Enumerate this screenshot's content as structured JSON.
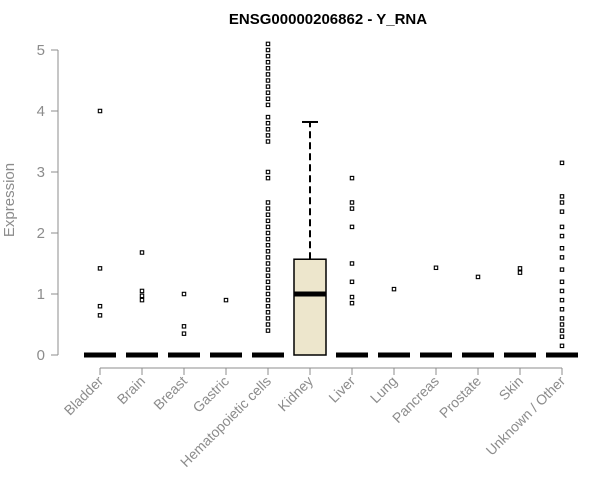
{
  "chart_data": {
    "type": "box",
    "title": "ENSG00000206862 - Y_RNA",
    "ylabel": "Expression",
    "xlabel": "",
    "ylim": [
      0,
      5.1
    ],
    "yticks": [
      "0",
      "1",
      "2",
      "3",
      "4",
      "5"
    ],
    "box_fill": "#ede6cc",
    "categories": [
      "Bladder",
      "Brain",
      "Breast",
      "Gastric",
      "Hematopoietic cells",
      "Kidney",
      "Liver",
      "Lung",
      "Pancreas",
      "Prostate",
      "Skin",
      "Unknown / Other"
    ],
    "boxes": [
      {
        "name": "Bladder",
        "q1": 0,
        "median": 0,
        "q3": 0,
        "whisker_low": 0,
        "whisker_high": 0,
        "outliers": [
          0.65,
          0.8,
          1.42,
          4.0
        ]
      },
      {
        "name": "Brain",
        "q1": 0,
        "median": 0,
        "q3": 0,
        "whisker_low": 0,
        "whisker_high": 0,
        "outliers": [
          0.9,
          0.97,
          1.05,
          1.68
        ]
      },
      {
        "name": "Breast",
        "q1": 0,
        "median": 0,
        "q3": 0,
        "whisker_low": 0,
        "whisker_high": 0,
        "outliers": [
          0.35,
          0.47,
          1.0
        ]
      },
      {
        "name": "Gastric",
        "q1": 0,
        "median": 0,
        "q3": 0,
        "whisker_low": 0,
        "whisker_high": 0,
        "outliers": [
          0.9
        ]
      },
      {
        "name": "Hematopoietic cells",
        "q1": 0,
        "median": 0,
        "q3": 0,
        "whisker_low": 0,
        "whisker_high": 0,
        "outliers": [
          0.4,
          0.5,
          0.6,
          0.7,
          0.8,
          0.9,
          1.0,
          1.1,
          1.2,
          1.3,
          1.4,
          1.5,
          1.6,
          1.7,
          1.8,
          1.9,
          2.0,
          2.1,
          2.2,
          2.3,
          2.4,
          2.5,
          2.9,
          3.0,
          3.5,
          3.6,
          3.7,
          3.8,
          3.9,
          4.1,
          4.2,
          4.3,
          4.4,
          4.5,
          4.6,
          4.7,
          4.8,
          4.9,
          5.0,
          5.1
        ]
      },
      {
        "name": "Kidney",
        "q1": 0,
        "median": 1.0,
        "q3": 1.57,
        "whisker_low": 0,
        "whisker_high": 3.82,
        "outliers": []
      },
      {
        "name": "Liver",
        "q1": 0,
        "median": 0,
        "q3": 0,
        "whisker_low": 0,
        "whisker_high": 0,
        "outliers": [
          0.85,
          0.95,
          1.2,
          1.5,
          2.1,
          2.4,
          2.5,
          2.9
        ]
      },
      {
        "name": "Lung",
        "q1": 0,
        "median": 0,
        "q3": 0,
        "whisker_low": 0,
        "whisker_high": 0,
        "outliers": [
          1.08
        ]
      },
      {
        "name": "Pancreas",
        "q1": 0,
        "median": 0,
        "q3": 0,
        "whisker_low": 0,
        "whisker_high": 0,
        "outliers": [
          1.43
        ]
      },
      {
        "name": "Prostate",
        "q1": 0,
        "median": 0,
        "q3": 0,
        "whisker_low": 0,
        "whisker_high": 0,
        "outliers": [
          1.28
        ]
      },
      {
        "name": "Skin",
        "q1": 0,
        "median": 0,
        "q3": 0,
        "whisker_low": 0,
        "whisker_high": 0,
        "outliers": [
          1.35,
          1.42
        ]
      },
      {
        "name": "Unknown / Other",
        "q1": 0,
        "median": 0,
        "q3": 0,
        "whisker_low": 0,
        "whisker_high": 0,
        "outliers": [
          0.15,
          0.3,
          0.4,
          0.5,
          0.6,
          0.75,
          0.9,
          1.05,
          1.2,
          1.4,
          1.6,
          1.75,
          1.95,
          2.1,
          2.35,
          2.5,
          2.6,
          3.15
        ]
      }
    ]
  }
}
